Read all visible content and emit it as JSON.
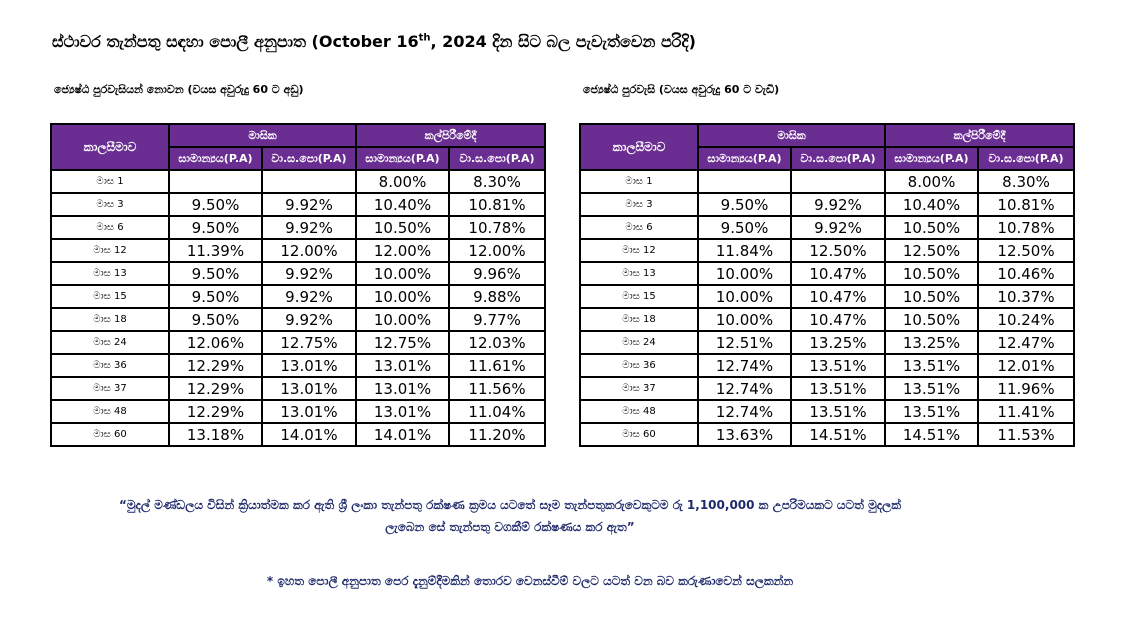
{
  "header": {
    "title_pre": "ස්ථාවර තැන්පතු සඳහා පොලී අනුපාත (October 16",
    "title_sup": "th",
    "title_post": ", 2024 දින සිට බල පැවැත්වෙන පරිදි)"
  },
  "tables": [
    {
      "subtitle": "ජ්‍යෙෂ්ඨ පුරවැසියන් නොවන (වයස අවුරුදු 60 ට අඩු)",
      "period_header": "කාලසීමාව",
      "group_headers": [
        "මාසික",
        "කල්පිරීමේදී"
      ],
      "sub_headers": [
        "සාමාන්‍යය(P.A)",
        "වා.ස.පො(P.A)",
        "සාමාන්‍යය(P.A)",
        "වා.ස.පො(P.A)"
      ],
      "rows": [
        [
          "මාස 1",
          null,
          null,
          "8.00%",
          "8.30%"
        ],
        [
          "මාස 3",
          "9.50%",
          "9.92%",
          "10.40%",
          "10.81%"
        ],
        [
          "මාස 6",
          "9.50%",
          "9.92%",
          "10.50%",
          "10.78%"
        ],
        [
          "මාස 12",
          "11.39%",
          "12.00%",
          "12.00%",
          "12.00%"
        ],
        [
          "මාස 13",
          "9.50%",
          "9.92%",
          "10.00%",
          "9.96%"
        ],
        [
          "මාස 15",
          "9.50%",
          "9.92%",
          "10.00%",
          "9.88%"
        ],
        [
          "මාස 18",
          "9.50%",
          "9.92%",
          "10.00%",
          "9.77%"
        ],
        [
          "මාස 24",
          "12.06%",
          "12.75%",
          "12.75%",
          "12.03%"
        ],
        [
          "මාස 36",
          "12.29%",
          "13.01%",
          "13.01%",
          "11.61%"
        ],
        [
          "මාස 37",
          "12.29%",
          "13.01%",
          "13.01%",
          "11.56%"
        ],
        [
          "මාස 48",
          "12.29%",
          "13.01%",
          "13.01%",
          "11.04%"
        ],
        [
          "මාස 60",
          "13.18%",
          "14.01%",
          "14.01%",
          "11.20%"
        ]
      ]
    },
    {
      "subtitle": "ජ්‍යෙෂ්ඨ පුරවැසි (වයස අවුරුදු 60 ට වැඩි)",
      "period_header": "කාලසීමාව",
      "group_headers": [
        "මාසික",
        "කල්පිරීමේදී"
      ],
      "sub_headers": [
        "සාමාන්‍යය(P.A)",
        "වා.ස.පො(P.A)",
        "සාමාන්‍යය(P.A)",
        "වා.ස.පො(P.A)"
      ],
      "rows": [
        [
          "මාස 1",
          null,
          null,
          "8.00%",
          "8.30%"
        ],
        [
          "මාස 3",
          "9.50%",
          "9.92%",
          "10.40%",
          "10.81%"
        ],
        [
          "මාස 6",
          "9.50%",
          "9.92%",
          "10.50%",
          "10.78%"
        ],
        [
          "මාස 12",
          "11.84%",
          "12.50%",
          "12.50%",
          "12.50%"
        ],
        [
          "මාස 13",
          "10.00%",
          "10.47%",
          "10.50%",
          "10.46%"
        ],
        [
          "මාස 15",
          "10.00%",
          "10.47%",
          "10.50%",
          "10.37%"
        ],
        [
          "මාස 18",
          "10.00%",
          "10.47%",
          "10.50%",
          "10.24%"
        ],
        [
          "මාස 24",
          "12.51%",
          "13.25%",
          "13.25%",
          "12.47%"
        ],
        [
          "මාස 36",
          "12.74%",
          "13.51%",
          "13.51%",
          "12.01%"
        ],
        [
          "මාස 37",
          "12.74%",
          "13.51%",
          "13.51%",
          "11.96%"
        ],
        [
          "මාස 48",
          "12.74%",
          "13.51%",
          "13.51%",
          "11.41%"
        ],
        [
          "මාස 60",
          "13.63%",
          "14.51%",
          "14.51%",
          "11.53%"
        ]
      ]
    }
  ],
  "notes": {
    "quote_lines": [
      "“මුදල් මණ්ඩලය විසින් ක්‍රියාත්මක කර ඇති ශ්‍රී ලංකා තැන්පතු රක්ෂණ ක්‍රමය යටතේ සෑම තැන්පතුකරුවෙකුටම රු 1,100,000 ක උපරිමයකට යටත් මුදලක්",
      "ලැබෙන සේ තැන්පතු වගකීම් රක්ෂණය කර ඇත”"
    ],
    "footnote": "* ඉහත පොලී අනුපාත පෙර දැනුම්දීමකින් තොරව වෙනස්වීම් වලට යටත් වන බව කරුණාවෙන් සලකන්න"
  }
}
